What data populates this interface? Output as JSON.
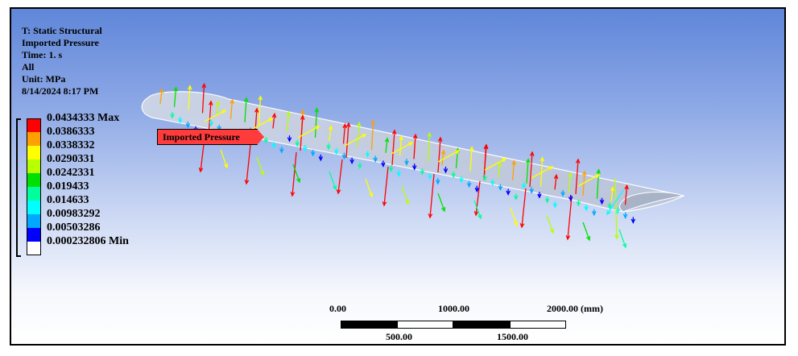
{
  "info": {
    "title": "T: Static Structural",
    "load_name": "Imported Pressure",
    "time": "Time: 1. s",
    "scope": "All",
    "unit": "Unit: MPa",
    "timestamp": "8/14/2024 8:17 PM"
  },
  "legend": {
    "entries": [
      {
        "label": "0.0434333 Max",
        "color": "#ff0000"
      },
      {
        "label": "0.0386333",
        "color": "#ffa000"
      },
      {
        "label": "0.0338332",
        "color": "#ffff00"
      },
      {
        "label": "0.0290331",
        "color": "#b8ff00"
      },
      {
        "label": "0.0242331",
        "color": "#00e000"
      },
      {
        "label": "0.019433",
        "color": "#00ff9c"
      },
      {
        "label": "0.014633",
        "color": "#00ffff"
      },
      {
        "label": "0.00983292",
        "color": "#00a8ff"
      },
      {
        "label": "0.00503286",
        "color": "#0000ff"
      },
      {
        "label": "0.000232806 Min",
        "color": "#ffffff"
      }
    ]
  },
  "callout": {
    "label": "Imported Pressure"
  },
  "scale_bar": {
    "top_labels": [
      "0.00",
      "1000.00",
      "2000.00 (mm)"
    ],
    "bottom_labels": [
      "500.00",
      "1500.00"
    ]
  }
}
